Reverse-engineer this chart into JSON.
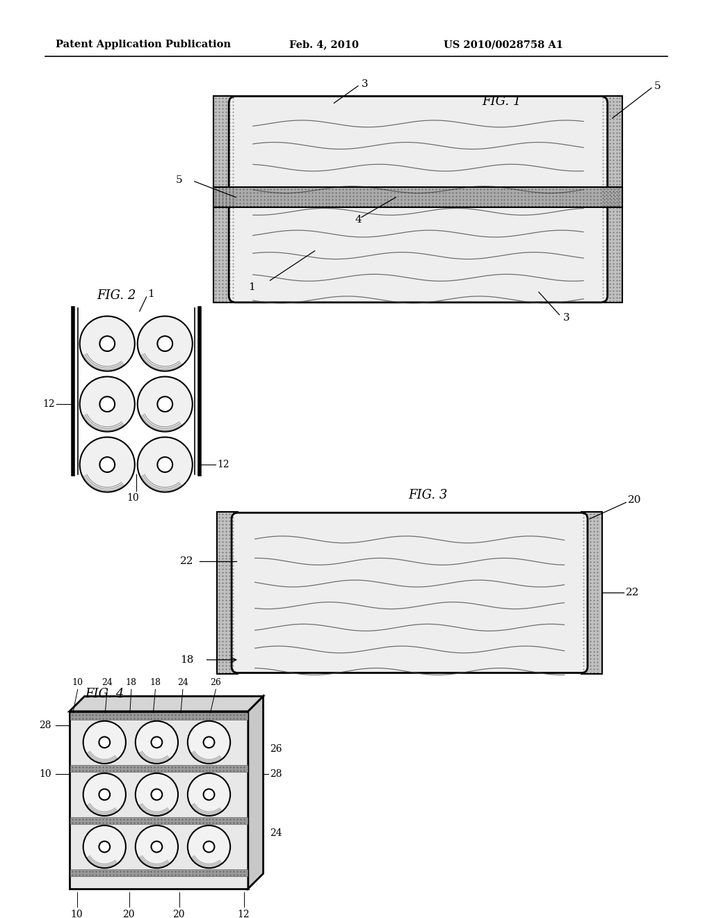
{
  "bg_color": "#ffffff",
  "header_left": "Patent Application Publication",
  "header_center": "Feb. 4, 2010",
  "header_right": "US 2010/0028758 A1",
  "fig1_label": "FIG. 1",
  "fig2_label": "FIG. 2",
  "fig3_label": "FIG. 3",
  "fig4_label": "FIG. 4"
}
